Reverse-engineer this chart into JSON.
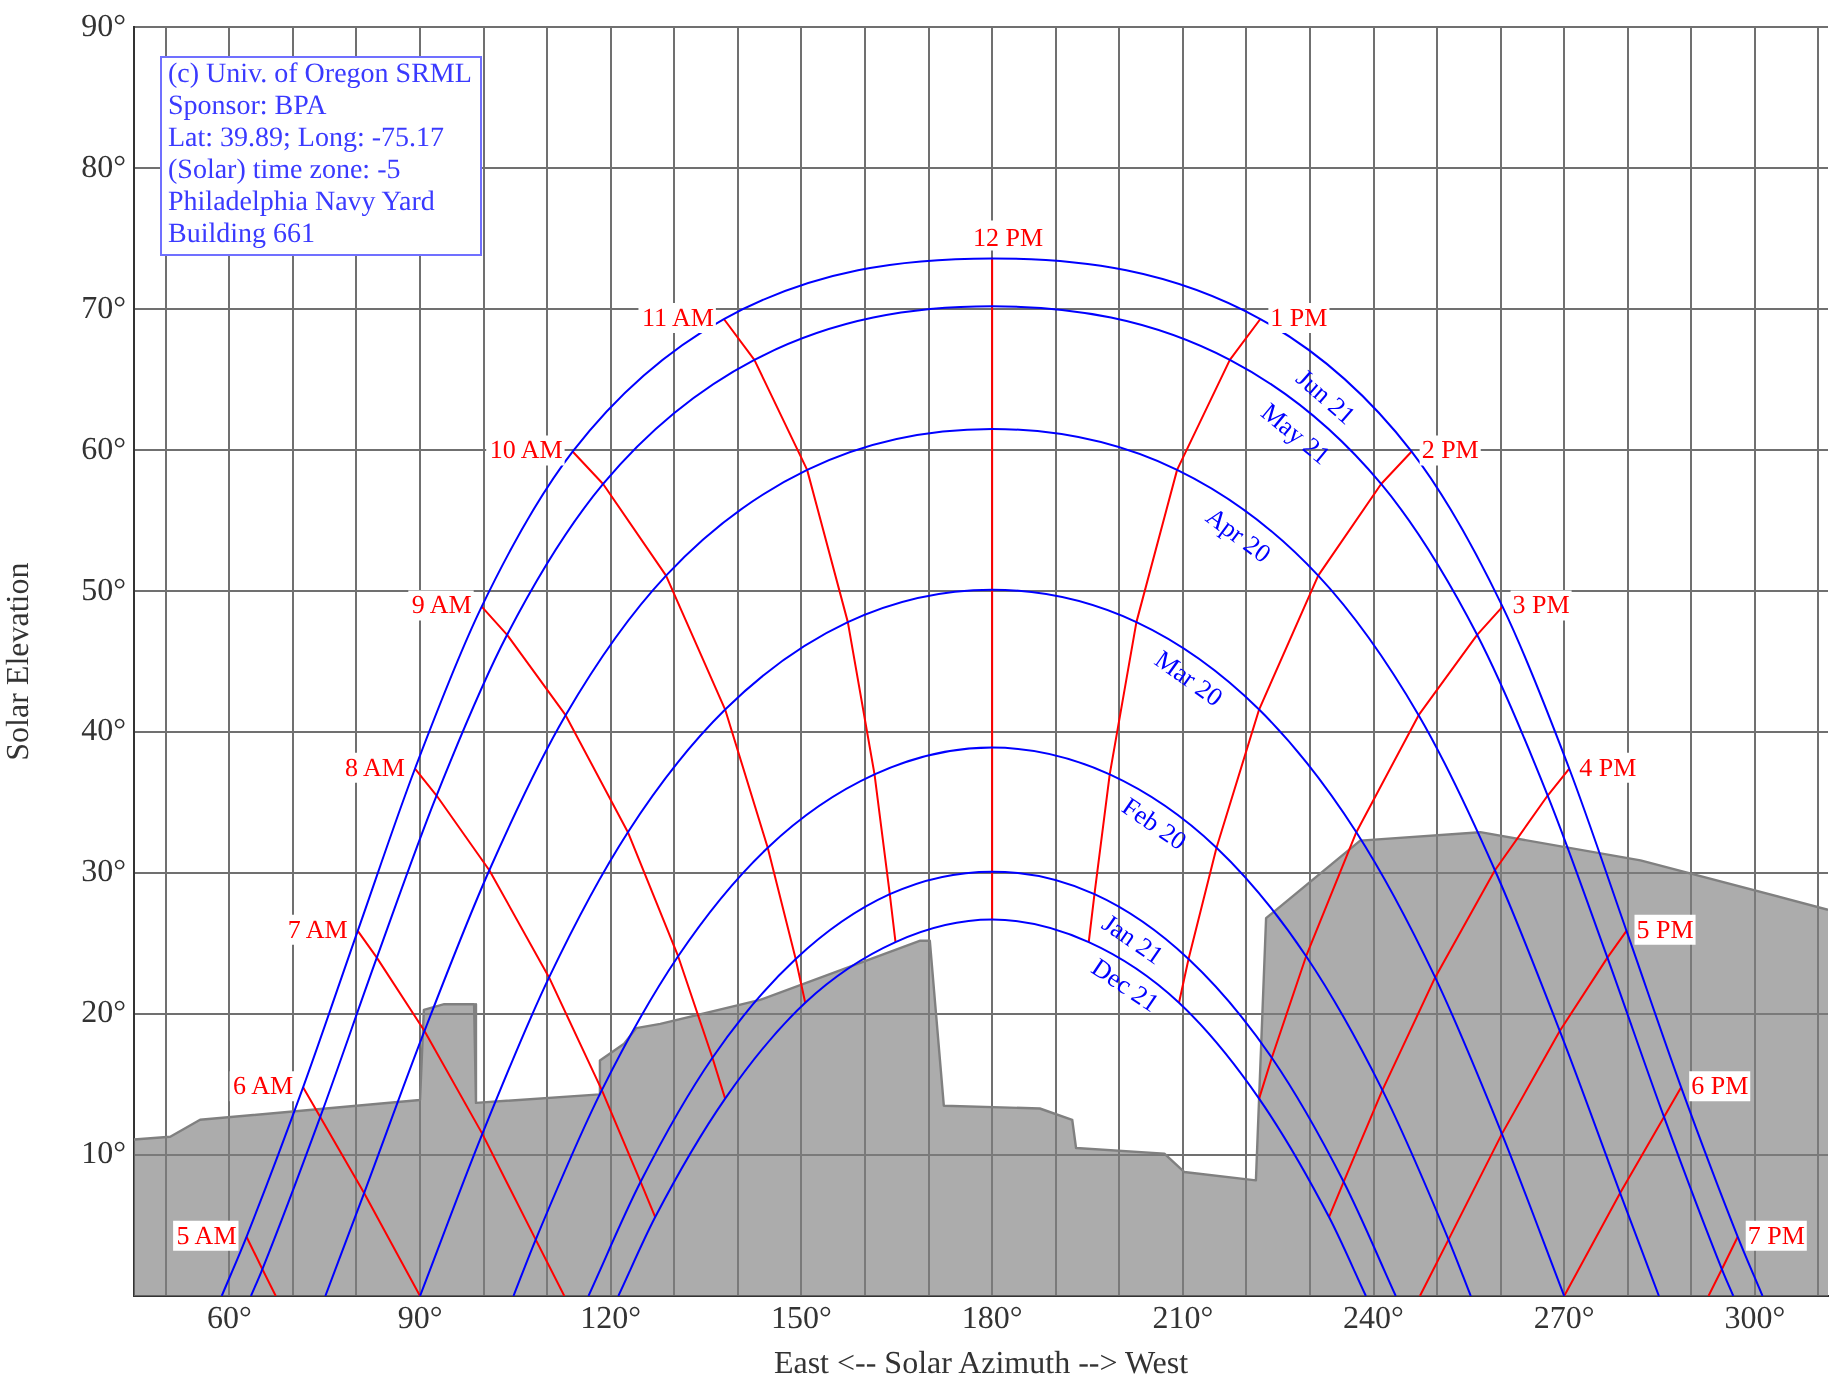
{
  "chart_data": {
    "type": "line",
    "xlabel": "East <-- Solar Azimuth --> West",
    "ylabel": "Solar Elevation",
    "annotations": [
      "(c) Univ. of Oregon SRML",
      "Sponsor: BPA",
      "Lat: 39.89; Long: -75.17",
      "(Solar) time zone: -5",
      "Philadelphia Navy Yard",
      "Building 661"
    ],
    "xlim": [
      45,
      311.5
    ],
    "ylim": [
      0,
      90
    ],
    "xticks": [
      {
        "value": 50,
        "label": null
      },
      {
        "value": 60,
        "label": "60°"
      },
      {
        "value": 70,
        "label": null
      },
      {
        "value": 80,
        "label": null
      },
      {
        "value": 90,
        "label": "90°"
      },
      {
        "value": 100,
        "label": null
      },
      {
        "value": 110,
        "label": null
      },
      {
        "value": 120,
        "label": "120°"
      },
      {
        "value": 130,
        "label": null
      },
      {
        "value": 140,
        "label": null
      },
      {
        "value": 150,
        "label": "150°"
      },
      {
        "value": 160,
        "label": null
      },
      {
        "value": 170,
        "label": null
      },
      {
        "value": 180,
        "label": "180°"
      },
      {
        "value": 190,
        "label": null
      },
      {
        "value": 200,
        "label": null
      },
      {
        "value": 210,
        "label": "210°"
      },
      {
        "value": 220,
        "label": null
      },
      {
        "value": 230,
        "label": null
      },
      {
        "value": 240,
        "label": "240°"
      },
      {
        "value": 250,
        "label": null
      },
      {
        "value": 260,
        "label": null
      },
      {
        "value": 270,
        "label": "270°"
      },
      {
        "value": 280,
        "label": null
      },
      {
        "value": 290,
        "label": null
      },
      {
        "value": 300,
        "label": "300°"
      },
      {
        "value": 310,
        "label": null
      }
    ],
    "yticks": [
      {
        "value": 10,
        "label": "10°"
      },
      {
        "value": 20,
        "label": "20°"
      },
      {
        "value": 30,
        "label": "30°"
      },
      {
        "value": 40,
        "label": "40°"
      },
      {
        "value": 50,
        "label": "50°"
      },
      {
        "value": 60,
        "label": "60°"
      },
      {
        "value": 70,
        "label": "70°"
      },
      {
        "value": 80,
        "label": "80°"
      },
      {
        "value": 90,
        "label": "90°"
      }
    ],
    "grid": true,
    "legend": false,
    "marker": "none",
    "line_style": "solid",
    "series": [
      {
        "type": "area",
        "color": "#808080",
        "x": [
          45,
          50.7,
          55.4,
          90,
          90.6,
          93.8,
          98.5,
          98.8,
          118.3,
          118.3,
          122.1,
          124.0,
          127.8,
          143.5,
          168.7,
          170.2,
          172.4,
          187.5,
          192.6,
          193.2,
          207.1,
          210.2,
          221.5,
          223.1,
          237.9,
          256.8,
          282,
          311.5
        ],
        "values": [
          11.1,
          11.3,
          12.5,
          13.9,
          20.3,
          20.7,
          20.7,
          13.7,
          14.3,
          16.7,
          17.9,
          19.0,
          19.3,
          21.0,
          25.2,
          25.2,
          13.5,
          13.3,
          12.5,
          10.5,
          10.1,
          8.8,
          8.2,
          26.8,
          32.3,
          32.9,
          30.9,
          27.4
        ]
      },
      {
        "name": "Jun 21",
        "color": "#0000ff",
        "x": [
          58.8,
          62.7,
          71.6,
          80.2,
          89.2,
          99.7,
          114.0,
          137.8,
          180,
          222.2,
          246.0,
          260.3,
          270.8,
          279.8,
          288.4,
          297.3,
          301.2
        ],
        "values": [
          0,
          4.2,
          14.8,
          25.9,
          37.4,
          48.9,
          59.9,
          69.3,
          73.6,
          69.3,
          59.9,
          48.9,
          37.4,
          25.9,
          14.8,
          4.2,
          0
        ]
      },
      {
        "name": "May 21",
        "color": "#0000ff",
        "x": [
          63.4,
          65.2,
          74.3,
          83.2,
          92.6,
          103.7,
          118.8,
          142.6,
          180,
          217.4,
          241.2,
          256.3,
          267.4,
          276.8,
          285.7,
          294.8,
          296.6
        ],
        "values": [
          0,
          1.9,
          12.7,
          24.0,
          35.5,
          46.9,
          57.6,
          66.4,
          70.2,
          66.4,
          57.6,
          46.9,
          35.5,
          24.0,
          12.7,
          1.9,
          0
        ]
      },
      {
        "name": "Apr 20",
        "color": "#0000ff",
        "x": [
          75.1,
          81.2,
          90.7,
          100.9,
          112.9,
          128.7,
          150.9,
          180,
          209.1,
          231.3,
          247.1,
          259.1,
          269.3,
          278.8,
          284.9
        ],
        "values": [
          0,
          7.3,
          18.8,
          30.2,
          41.2,
          51.1,
          58.6,
          61.5,
          58.6,
          51.1,
          41.2,
          30.2,
          18.8,
          7.3,
          0
        ]
      },
      {
        "name": "Mar 20",
        "color": "#0000ff",
        "x": [
          90,
          99.8,
          110.3,
          122.7,
          138.0,
          157.3,
          180,
          202.7,
          222.0,
          237.3,
          249.7,
          260.2,
          270
        ],
        "values": [
          0,
          11.5,
          22.6,
          32.9,
          41.6,
          47.8,
          50.1,
          47.8,
          41.6,
          32.9,
          22.6,
          11.5,
          0
        ]
      },
      {
        "name": "Feb 20",
        "color": "#0000ff",
        "x": [
          104.7,
          108.2,
          118.6,
          130.6,
          144.7,
          161.5,
          180,
          198.5,
          215.3,
          229.4,
          241.4,
          251.8,
          255.3
        ],
        "values": [
          0,
          4.0,
          14.6,
          24.1,
          31.8,
          37.0,
          38.9,
          37.0,
          31.8,
          24.1,
          14.6,
          4.0,
          0
        ]
      },
      {
        "name": "Jan 21",
        "color": "#0000ff",
        "x": [
          116.5,
          124.7,
          136.0,
          149.1,
          163.9,
          180,
          196.1,
          210.9,
          224.0,
          235.3,
          243.5
        ],
        "values": [
          0,
          8.1,
          16.9,
          23.9,
          28.5,
          30.1,
          28.5,
          23.9,
          16.9,
          8.1,
          0
        ]
      },
      {
        "name": "Dec 21",
        "color": "#0000ff",
        "x": [
          121.2,
          127.0,
          138.0,
          150.6,
          164.8,
          180,
          195.2,
          209.4,
          222.0,
          233.0,
          238.8
        ],
        "values": [
          0,
          5.6,
          14.0,
          20.8,
          25.1,
          26.7,
          25.1,
          20.8,
          14.0,
          5.6,
          0
        ]
      },
      {
        "name": "5 AM",
        "color": "#ff0000",
        "x": [
          62.7,
          65.2,
          67.3
        ],
        "values": [
          4.2,
          1.9,
          0
        ]
      },
      {
        "name": "6 AM",
        "color": "#ff0000",
        "x": [
          71.6,
          74.3,
          81.2,
          90
        ],
        "values": [
          14.8,
          12.7,
          7.3,
          0
        ]
      },
      {
        "name": "7 AM",
        "color": "#ff0000",
        "x": [
          80.2,
          83.2,
          90.7,
          99.8,
          108.2,
          112.7
        ],
        "values": [
          25.9,
          24.0,
          18.8,
          11.5,
          4.0,
          0
        ]
      },
      {
        "name": "8 AM",
        "color": "#ff0000",
        "x": [
          89.2,
          92.6,
          100.9,
          110.3,
          118.6,
          124.7,
          127.0
        ],
        "values": [
          37.4,
          35.5,
          30.2,
          22.6,
          14.6,
          8.1,
          5.6
        ]
      },
      {
        "name": "9 AM",
        "color": "#ff0000",
        "x": [
          99.7,
          103.7,
          112.9,
          122.7,
          130.6,
          136.0,
          138.0
        ],
        "values": [
          48.9,
          46.9,
          41.2,
          32.9,
          24.1,
          16.9,
          14.0
        ]
      },
      {
        "name": "10 AM",
        "color": "#ff0000",
        "x": [
          114.0,
          118.8,
          128.7,
          138.0,
          144.7,
          149.1,
          150.6
        ],
        "values": [
          59.9,
          57.6,
          51.1,
          41.6,
          31.8,
          23.9,
          20.8
        ]
      },
      {
        "name": "11 AM",
        "color": "#ff0000",
        "x": [
          137.8,
          142.6,
          150.9,
          157.3,
          161.5,
          163.9,
          164.8
        ],
        "values": [
          69.3,
          66.4,
          58.6,
          47.8,
          37.0,
          28.5,
          25.1
        ]
      },
      {
        "name": "12 PM",
        "color": "#ff0000",
        "x": [
          180,
          180,
          180,
          180,
          180,
          180,
          180
        ],
        "values": [
          73.6,
          70.2,
          61.5,
          50.1,
          38.9,
          30.1,
          26.7
        ]
      },
      {
        "name": "1 PM",
        "color": "#ff0000",
        "x": [
          222.2,
          217.4,
          209.1,
          202.7,
          198.5,
          196.1,
          195.2
        ],
        "values": [
          69.3,
          66.4,
          58.6,
          47.8,
          37.0,
          28.5,
          25.1
        ]
      },
      {
        "name": "2 PM",
        "color": "#ff0000",
        "x": [
          246.0,
          241.2,
          231.3,
          222.0,
          215.3,
          210.9,
          209.4
        ],
        "values": [
          59.9,
          57.6,
          51.1,
          41.6,
          31.8,
          23.9,
          20.8
        ]
      },
      {
        "name": "3 PM",
        "color": "#ff0000",
        "x": [
          260.3,
          256.3,
          247.1,
          237.3,
          229.4,
          224.0,
          222.0
        ],
        "values": [
          48.9,
          46.9,
          41.2,
          32.9,
          24.1,
          16.9,
          14.0
        ]
      },
      {
        "name": "4 PM",
        "color": "#ff0000",
        "x": [
          270.8,
          267.4,
          259.1,
          249.7,
          241.4,
          235.3,
          233.0
        ],
        "values": [
          37.4,
          35.5,
          30.2,
          22.6,
          14.6,
          8.1,
          5.6
        ]
      },
      {
        "name": "5 PM",
        "color": "#ff0000",
        "x": [
          279.8,
          276.8,
          269.3,
          260.2,
          251.8,
          247.3
        ],
        "values": [
          25.9,
          24.0,
          18.8,
          11.5,
          4.0,
          0
        ]
      },
      {
        "name": "6 PM",
        "color": "#ff0000",
        "x": [
          288.4,
          285.7,
          278.8,
          270
        ],
        "values": [
          14.8,
          12.7,
          7.3,
          0
        ]
      },
      {
        "name": "7 PM",
        "color": "#ff0000",
        "x": [
          297.3,
          294.8,
          292.7
        ],
        "values": [
          4.2,
          1.9,
          0
        ]
      }
    ]
  }
}
